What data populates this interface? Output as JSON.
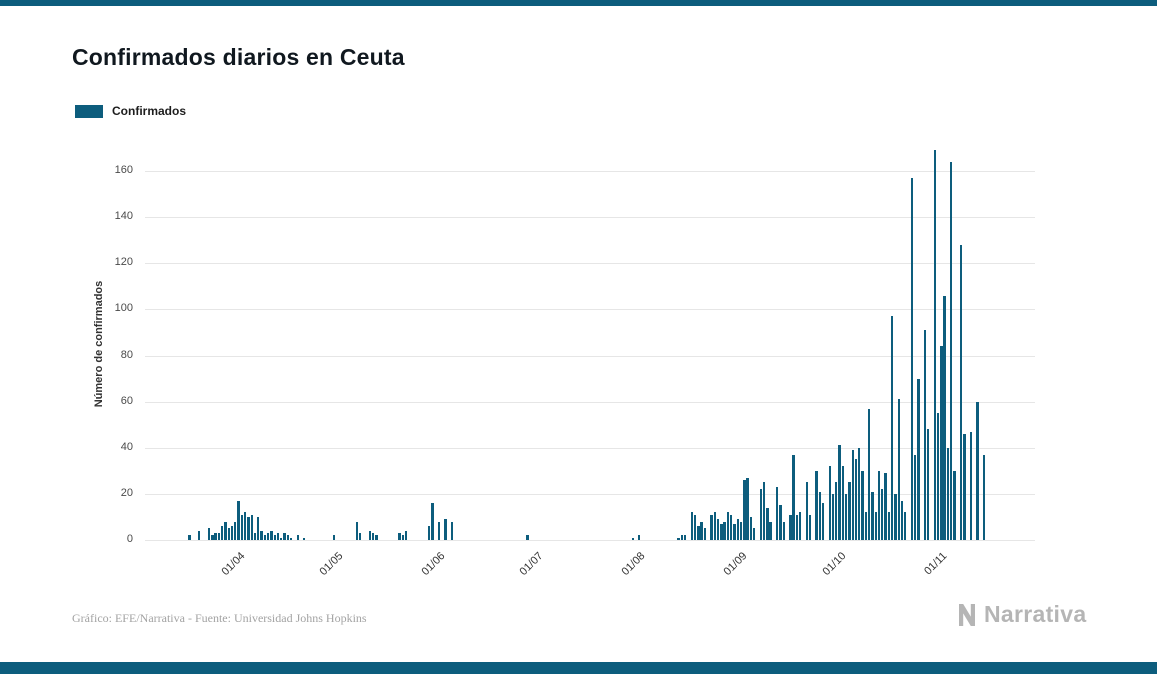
{
  "page": {
    "title": "Confirmados diarios en Ceuta",
    "footer_credit": "Gráfico: EFE/Narrativa - Fuente: Universidad Johns Hopkins",
    "brand_name": "Narrativa"
  },
  "legend": {
    "label": "Confirmados",
    "color": "#0d5d7d"
  },
  "colors": {
    "accent": "#0d5d7d",
    "gridline": "#e6e6e6",
    "bar": "#0d5d7d"
  },
  "chart_data": {
    "type": "bar",
    "title": "Confirmados diarios en Ceuta",
    "series_name": "Confirmados",
    "xlabel": "",
    "ylabel": "Número de confirmados",
    "ylim": [
      0,
      170
    ],
    "yticks": [
      0,
      20,
      40,
      60,
      80,
      100,
      120,
      140,
      160
    ],
    "x_tick_labels": [
      "01/04",
      "01/05",
      "01/06",
      "01/07",
      "01/08",
      "01/09",
      "01/10",
      "01/11"
    ],
    "grid": true,
    "legend_position": "top-left",
    "bar_color": "#0d5d7d",
    "months": [
      {
        "label": "",
        "values": [
          0,
          0,
          0,
          0,
          0,
          0,
          0,
          0,
          0,
          0,
          0,
          0,
          0,
          2,
          0,
          0,
          4,
          0,
          0,
          5,
          2,
          3,
          3,
          6,
          8,
          5,
          6,
          8
        ]
      },
      {
        "label": "01/04",
        "values": [
          17,
          11,
          12,
          10,
          11,
          3,
          10,
          4,
          2,
          3,
          4,
          2,
          3,
          1,
          3,
          2,
          1,
          0,
          2,
          0,
          1,
          0,
          0,
          0,
          0,
          0,
          0,
          0,
          0,
          2
        ]
      },
      {
        "label": "01/05",
        "values": [
          0,
          0,
          0,
          0,
          0,
          0,
          8,
          3,
          0,
          0,
          4,
          3,
          2,
          0,
          0,
          0,
          0,
          0,
          0,
          3,
          2,
          4,
          0,
          0,
          0,
          0,
          0,
          0,
          6,
          16,
          0
        ]
      },
      {
        "label": "01/06",
        "values": [
          8,
          0,
          9,
          0,
          8,
          0,
          0,
          0,
          0,
          0,
          0,
          0,
          0,
          0,
          0,
          0,
          0,
          0,
          0,
          0,
          0,
          0,
          0,
          0,
          0,
          0,
          0,
          2,
          0,
          0
        ]
      },
      {
        "label": "01/07",
        "values": [
          0,
          0,
          0,
          0,
          0,
          0,
          0,
          0,
          0,
          0,
          0,
          0,
          0,
          0,
          0,
          0,
          0,
          0,
          0,
          0,
          0,
          0,
          0,
          0,
          0,
          0,
          0,
          0,
          0,
          1,
          0
        ]
      },
      {
        "label": "01/08",
        "values": [
          2,
          0,
          0,
          0,
          0,
          0,
          0,
          0,
          0,
          0,
          0,
          0,
          1,
          2,
          2,
          0,
          12,
          11,
          6,
          8,
          5,
          0,
          11,
          12,
          9,
          7,
          8,
          12,
          11,
          7,
          9
        ]
      },
      {
        "label": "01/09",
        "values": [
          8,
          26,
          27,
          10,
          5,
          0,
          22,
          25,
          14,
          8,
          0,
          23,
          15,
          8,
          0,
          11,
          37,
          11,
          12,
          0,
          25,
          11,
          0,
          30,
          21,
          16,
          0,
          32,
          20,
          25
        ]
      },
      {
        "label": "01/10",
        "values": [
          41,
          32,
          20,
          25,
          39,
          35,
          40,
          30,
          12,
          57,
          21,
          12,
          30,
          22,
          29,
          12,
          97,
          20,
          61,
          17,
          12,
          0,
          157,
          37,
          70,
          0,
          91,
          48,
          0,
          169,
          55
        ]
      },
      {
        "label": "01/11",
        "values": [
          84,
          106,
          40,
          164,
          30,
          0,
          128,
          46,
          0,
          47,
          0,
          60,
          0,
          37,
          0,
          0,
          0,
          0,
          0,
          0,
          0,
          0,
          0,
          0,
          0,
          0,
          0,
          0,
          0
        ]
      }
    ]
  }
}
